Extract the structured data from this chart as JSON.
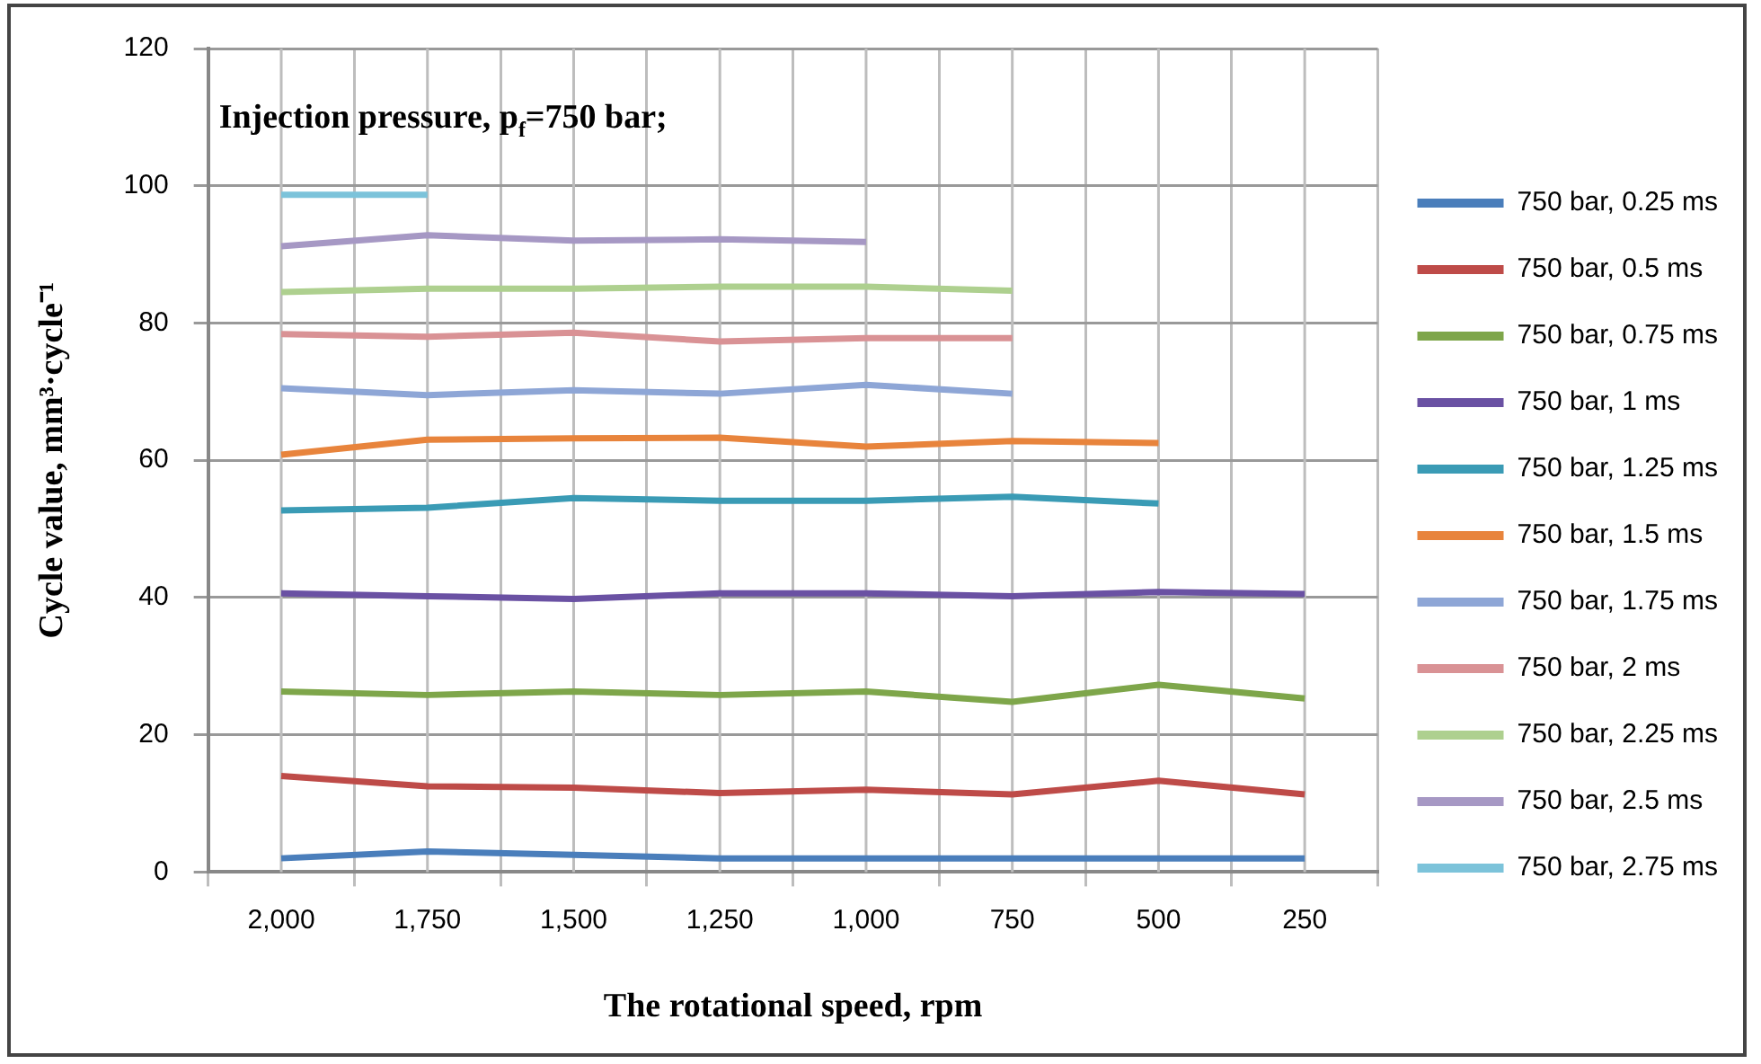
{
  "chart_data": {
    "type": "line",
    "xlabel": "The rotational speed, rpm",
    "ylabel": "Cycle value, mm³·cycle⁻¹",
    "annotations": [
      "Injection pressure, p$_{f}$=750 bar;"
    ],
    "categories": [
      "2,000",
      "1,750",
      "1,500",
      "1,250",
      "1,000",
      "750",
      "500",
      "250"
    ],
    "ylim": [
      0,
      120
    ],
    "yticks": [
      0,
      20,
      40,
      60,
      80,
      100,
      120
    ],
    "grid": true,
    "legend": "right",
    "marker": "none",
    "line_style": "solid",
    "series": [
      {
        "name": "750 bar, 0.25 ms",
        "color": "#4a7ebb",
        "values": [
          2,
          3,
          2.5,
          2,
          2,
          2,
          2,
          2
        ]
      },
      {
        "name": "750 bar, 0.5 ms",
        "color": "#be4b48",
        "values": [
          14,
          12.5,
          12.3,
          11.5,
          12,
          11.3,
          13.3,
          11.3
        ]
      },
      {
        "name": "750 bar, 0.75 ms",
        "color": "#7ea64a",
        "values": [
          26.3,
          25.8,
          26.3,
          25.8,
          26.3,
          24.8,
          27.3,
          25.3
        ]
      },
      {
        "name": "750 bar, 1 ms",
        "color": "#6a51a3",
        "values": [
          40.6,
          40.2,
          39.8,
          40.6,
          40.6,
          40.2,
          40.8,
          40.5
        ]
      },
      {
        "name": "750 bar, 1.25 ms",
        "color": "#3a9bb5",
        "values": [
          52.7,
          53.1,
          54.5,
          54.1,
          54.1,
          54.7,
          53.7,
          null
        ]
      },
      {
        "name": "750 bar, 1.5 ms",
        "color": "#e8843c",
        "values": [
          60.8,
          63,
          63.2,
          63.3,
          62,
          62.8,
          62.5,
          null
        ]
      },
      {
        "name": "750 bar, 1.75 ms",
        "color": "#8ea6d6",
        "values": [
          70.5,
          69.5,
          70.2,
          69.7,
          71,
          69.7,
          null,
          null
        ]
      },
      {
        "name": "750 bar, 2 ms",
        "color": "#d99295",
        "values": [
          78.4,
          78,
          78.6,
          77.3,
          77.8,
          77.8,
          null,
          null
        ]
      },
      {
        "name": "750 bar, 2.25 ms",
        "color": "#aed08f",
        "values": [
          84.5,
          85,
          85,
          85.3,
          85.3,
          84.7,
          null,
          null
        ]
      },
      {
        "name": "750 bar, 2.5 ms",
        "color": "#a698c4",
        "values": [
          91.2,
          92.8,
          92,
          92.2,
          91.8,
          null,
          null,
          null
        ]
      },
      {
        "name": "750 bar, 2.75 ms",
        "color": "#7cc3da",
        "values": [
          98.7,
          98.7,
          null,
          null,
          null,
          null,
          null,
          null
        ]
      }
    ]
  }
}
